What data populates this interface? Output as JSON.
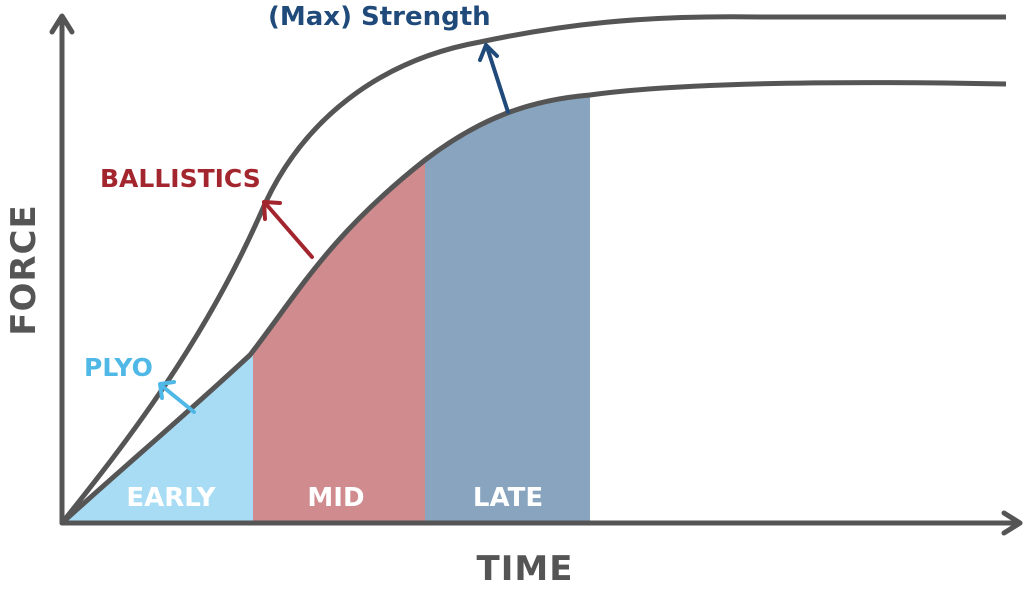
{
  "axes": {
    "x_label": "TIME",
    "y_label": "FORCE"
  },
  "phases": [
    {
      "label": "EARLY",
      "color": "#a8dcf4"
    },
    {
      "label": "MID",
      "color": "#cf8b8e"
    },
    {
      "label": "LATE",
      "color": "#88a4bf"
    }
  ],
  "annotations": [
    {
      "label": "PLYO",
      "color": "#4fb8e6",
      "arrow": "arrow-icon"
    },
    {
      "label": "BALLISTICS",
      "color": "#a3262e",
      "arrow": "arrow-icon"
    },
    {
      "label": "(Max) Strength",
      "color": "#1f4a7a",
      "arrow": "arrow-icon"
    }
  ],
  "colors": {
    "axis": "#555555",
    "curve": "#555555",
    "background": "#ffffff"
  }
}
